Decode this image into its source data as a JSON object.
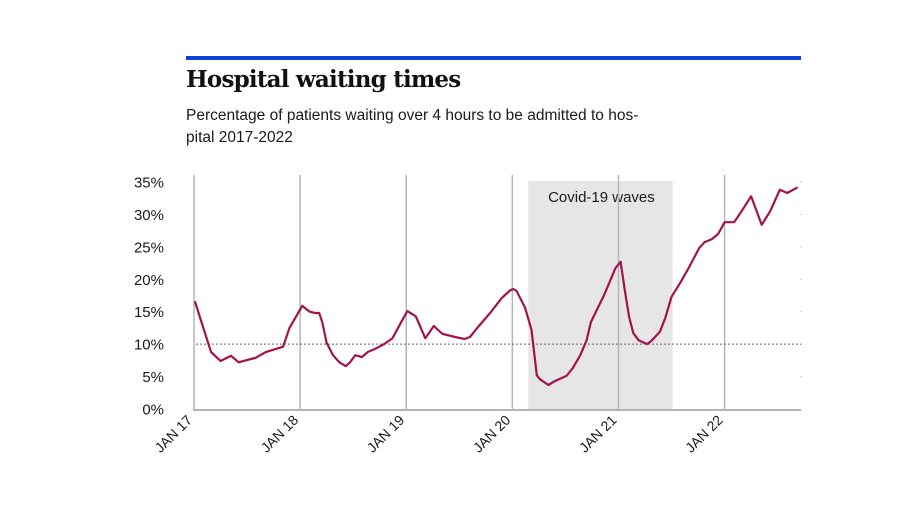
{
  "colors": {
    "accent_bar": "#0d3fd9",
    "line": "#a3134b",
    "shade": "#e6e6e6",
    "grid": "#b5b5b5",
    "reference_line": "#666666"
  },
  "chart_data": {
    "type": "line",
    "title": "Hospital waiting times",
    "subtitle_line1": "Percentage of patients waiting over 4 hours to be admitted to hos-",
    "subtitle_line2": "pital 2017-2022",
    "xlabel": "",
    "ylabel": "",
    "ylim": [
      0,
      35
    ],
    "xlim_years_since_jan17": [
      0,
      5.72
    ],
    "y_ticks": [
      {
        "value": 0,
        "label": "0%"
      },
      {
        "value": 5,
        "label": "5%"
      },
      {
        "value": 10,
        "label": "10%"
      },
      {
        "value": 15,
        "label": "15%"
      },
      {
        "value": 20,
        "label": "20%"
      },
      {
        "value": 25,
        "label": "25%"
      },
      {
        "value": 30,
        "label": "30%"
      },
      {
        "value": 35,
        "label": "35%"
      }
    ],
    "x_ticks": [
      {
        "value": 0,
        "label": "JAN 17"
      },
      {
        "value": 1,
        "label": "JAN 18"
      },
      {
        "value": 2,
        "label": "JAN 19"
      },
      {
        "value": 3,
        "label": "JAN 20"
      },
      {
        "value": 4,
        "label": "JAN 21"
      },
      {
        "value": 5,
        "label": "JAN 22"
      }
    ],
    "grid": "vertical at year ticks",
    "reference_line": {
      "value": 10,
      "style": "dotted"
    },
    "shaded_region": {
      "start": 3.15,
      "end": 4.51,
      "label": "Covid-19 waves"
    },
    "series": [
      {
        "name": "Patients waiting over 4 hours (%)",
        "x": [
          0.01,
          0.16,
          0.25,
          0.35,
          0.42,
          0.58,
          0.68,
          0.84,
          0.9,
          1.02,
          1.09,
          1.14,
          1.18,
          1.21,
          1.25,
          1.31,
          1.37,
          1.43,
          1.47,
          1.52,
          1.58,
          1.64,
          1.71,
          1.79,
          1.87,
          1.95,
          2.01,
          2.09,
          2.18,
          2.26,
          2.34,
          2.46,
          2.55,
          2.6,
          2.67,
          2.79,
          2.9,
          2.98,
          3.01,
          3.04,
          3.12,
          3.18,
          3.23,
          3.26,
          3.34,
          3.4,
          3.51,
          3.57,
          3.64,
          3.7,
          3.74,
          3.79,
          3.86,
          3.91,
          3.97,
          4.02,
          4.06,
          4.1,
          4.14,
          4.19,
          4.27,
          4.31,
          4.39,
          4.44,
          4.5,
          4.58,
          4.67,
          4.76,
          4.81,
          4.88,
          4.94,
          5.0,
          5.09,
          5.16,
          5.25,
          5.35,
          5.43,
          5.52,
          5.59,
          5.68
        ],
        "values": [
          16.5,
          8.8,
          7.4,
          8.2,
          7.2,
          7.9,
          8.8,
          9.6,
          12.5,
          15.9,
          15.0,
          14.8,
          14.8,
          13.3,
          10.2,
          8.3,
          7.2,
          6.6,
          7.2,
          8.3,
          8.0,
          8.8,
          9.3,
          10.0,
          10.9,
          13.3,
          15.1,
          14.3,
          10.9,
          12.8,
          11.6,
          11.1,
          10.8,
          11.1,
          12.5,
          14.8,
          17.1,
          18.3,
          18.5,
          18.2,
          15.6,
          12.2,
          5.2,
          4.6,
          3.7,
          4.3,
          5.1,
          6.3,
          8.3,
          10.6,
          13.4,
          15.1,
          17.4,
          19.3,
          21.7,
          22.7,
          18.3,
          14.2,
          11.7,
          10.6,
          10.0,
          10.5,
          11.9,
          14.0,
          17.3,
          19.4,
          22.0,
          24.8,
          25.7,
          26.2,
          27.0,
          28.8,
          28.8,
          30.5,
          32.8,
          28.4,
          30.5,
          33.8,
          33.3,
          34.1
        ]
      }
    ]
  }
}
